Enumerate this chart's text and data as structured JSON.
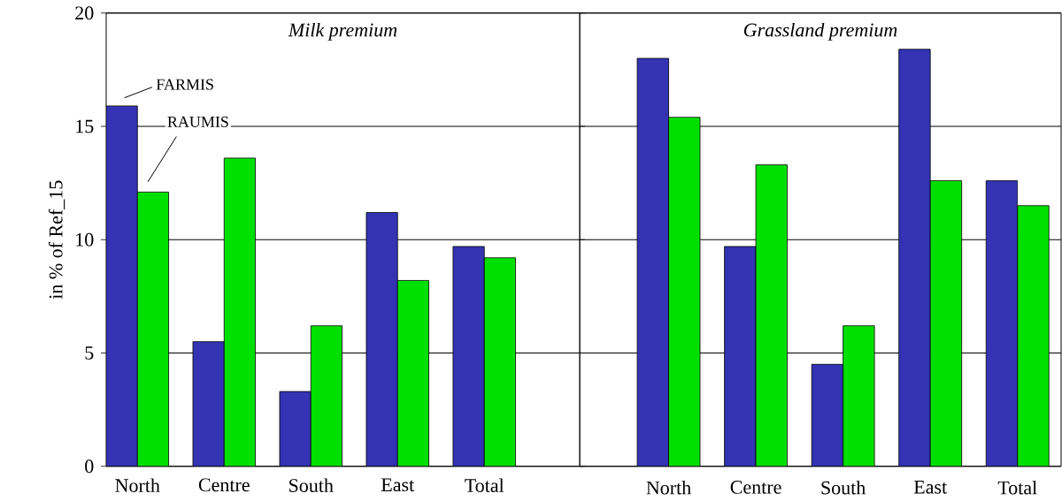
{
  "chart_data": [
    {
      "type": "bar",
      "title": "Milk premium",
      "ylabel": "in % of Ref_15",
      "categories": [
        "North",
        "Centre",
        "South",
        "East",
        "Total"
      ],
      "series": [
        {
          "name": "FARMIS",
          "color": "#3333b3",
          "values": [
            15.9,
            5.5,
            3.3,
            11.2,
            9.7
          ]
        },
        {
          "name": "RAUMIS",
          "color": "#00e000",
          "values": [
            12.1,
            13.6,
            6.2,
            8.2,
            9.2
          ]
        }
      ],
      "ylim": [
        0,
        20
      ],
      "yticks": [
        0,
        5,
        10,
        15,
        20
      ],
      "grid": "y"
    },
    {
      "type": "bar",
      "title": "Grassland premium",
      "categories": [
        "North",
        "Centre",
        "South",
        "East",
        "Total"
      ],
      "series": [
        {
          "color": "#3333b3",
          "values": [
            18.0,
            9.7,
            4.5,
            18.4,
            12.6
          ]
        },
        {
          "color": "#00e000",
          "values": [
            15.4,
            13.3,
            6.2,
            12.6,
            11.5
          ]
        }
      ],
      "ylim": [
        0,
        20
      ],
      "yticks": [
        0,
        5,
        10,
        15,
        20
      ],
      "grid": "y",
      "tick_labels": "x"
    }
  ]
}
